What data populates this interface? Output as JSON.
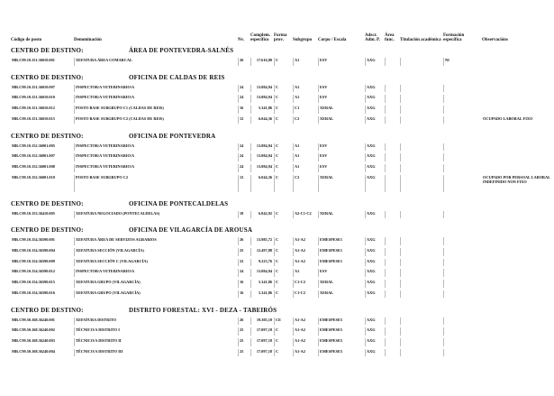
{
  "header": {
    "columns": [
      "Código de posto",
      "Denominación",
      "Nv.",
      "Complem. específico",
      "Forma prov.",
      "Subgrupo",
      "Corpo / Escala",
      "Adscr. Adm. P.",
      "Área func.",
      "Titulación académica",
      "Formación específica",
      "Observacións"
    ]
  },
  "sections": [
    {
      "label": "CENTRO DE DESTINO:",
      "name": "ÁREA DE PONTEVEDRA-SALNÉS",
      "rows": [
        {
          "code": "MR.C99.10.151.36010.001",
          "name": "XEFATURA ÁREA COMARCAL",
          "level": "26",
          "complement": "17.616,00",
          "form": "C",
          "subgroup": "A1",
          "corps": "ESV",
          "adscr": "AXG",
          "training": "NI"
        }
      ]
    },
    {
      "label": "CENTRO DE DESTINO:",
      "name": "OFICINA DE CALDAS DE REIS",
      "rows": [
        {
          "code": "MR.C99.10.151.36010.007",
          "name": "INSPECTOR/A VETERINARIO/A",
          "level": "24",
          "complement": "13.084,94",
          "form": "C",
          "subgroup": "A1",
          "corps": "ESV",
          "adscr": "AXG"
        },
        {
          "code": "MR.C99.10.151.36010.010",
          "name": "INSPECTOR/A VETERINARIO/A",
          "level": "24",
          "complement": "13.084,94",
          "form": "C",
          "subgroup": "A1",
          "corps": "ESV",
          "adscr": "AXG"
        },
        {
          "code": "MR.C99.10.151.36010.012",
          "name": "POSTO BASE SUBGRUPO C1 (CALDAS DE REIS)",
          "level": "16",
          "complement": "5.341,86",
          "form": "C",
          "subgroup": "C1",
          "corps": "XERAL",
          "adscr": "AXG"
        },
        {
          "code": "MR.C99.10.151.36010.015",
          "name": "POSTO BASE SUBGRUPO C2 (CALDAS DE REIS)",
          "level": "12",
          "complement": "6.044,36",
          "form": "C",
          "subgroup": "C2",
          "corps": "XERAL",
          "adscr": "AXG",
          "notes": "OCUPADO LABORAL FIXO"
        }
      ]
    },
    {
      "label": "CENTRO DE DESTINO:",
      "name": "OFICINA DE PONTEVEDRA",
      "rows": [
        {
          "code": "MR.C99.10.152.36001.005",
          "name": "INSPECTOR/A VETERINARIO/A",
          "level": "24",
          "complement": "13.084,94",
          "form": "C",
          "subgroup": "A1",
          "corps": "ESV",
          "adscr": "AXG"
        },
        {
          "code": "MR.C99.10.152.36001.007",
          "name": "INSPECTOR/A VETERINARIO/A",
          "level": "24",
          "complement": "13.084,94",
          "form": "C",
          "subgroup": "A1",
          "corps": "ESV",
          "adscr": "AXG"
        },
        {
          "code": "MR.C99.10.152.36001.008",
          "name": "INSPECTOR/A VETERINARIO/A",
          "level": "24",
          "complement": "13.084,94",
          "form": "C",
          "subgroup": "A1",
          "corps": "ESV",
          "adscr": "AXG"
        },
        {
          "code": "MR.C99.10.152.36001.010",
          "name": "POSTO BASE SUBGRUPO C2",
          "level": "12",
          "complement": "6.044,36",
          "form": "C",
          "subgroup": "C2",
          "corps": "XERAL",
          "adscr": "AXG",
          "notes": "OCUPADO POR PERSOAL LABORAL INDEFINIDO NON FIXO"
        }
      ]
    },
    {
      "label": "CENTRO DE DESTINO:",
      "name": "OFICINA DE PONTECALDELAS",
      "rows": [
        {
          "code": "MR.C99.10.153.36410.005",
          "name": "XEFATURA NEGOCIADO (PONTECALDELAS)",
          "level": "18",
          "complement": "6.842,92",
          "form": "C",
          "subgroup": "A2-C1-C2",
          "corps": "XERAL",
          "adscr": "AXG"
        }
      ]
    },
    {
      "label": "CENTRO DE DESTINO:",
      "name": "OFICINA DE VILAGARCÍA DE AROUSA",
      "rows": [
        {
          "code": "MR.C99.10.154.36590.001",
          "name": "XEFATURA ÁREA DE SERVIZOS AGRARIOS",
          "level": "26",
          "complement": "13.985,72",
          "form": "C",
          "subgroup": "A1-A2",
          "corps": "EMESPESE1",
          "adscr": "AXG"
        },
        {
          "code": "MR.C99.10.154.36590.004",
          "name": "XEFATURA SECCIÓN (VILAGARCÍA)",
          "level": "25",
          "complement": "12.497,88",
          "form": "C",
          "subgroup": "A1-A2",
          "corps": "EMESPESE1",
          "adscr": "AXG"
        },
        {
          "code": "MR.C99.10.154.36590.009",
          "name": "XEFATURA SECCIÓN C (VILAGARCÍA)",
          "level": "22",
          "complement": "9.223,76",
          "form": "C",
          "subgroup": "A1-A2",
          "corps": "EMESPESE1",
          "adscr": "AXG"
        },
        {
          "code": "MR.C99.10.154.36590.012",
          "name": "INSPECTOR/A VETERINARIO/A",
          "level": "24",
          "complement": "13.084,94",
          "form": "C",
          "subgroup": "A1",
          "corps": "ESV",
          "adscr": "AXG"
        },
        {
          "code": "MR.C99.10.154.36590.015",
          "name": "XEFATURA GRUPO (VILAGARCÍA)",
          "level": "16",
          "complement": "5.341,86",
          "form": "C",
          "subgroup": "C1-C2",
          "corps": "XERAL",
          "adscr": "AXG"
        },
        {
          "code": "MR.C99.10.154.36590.016",
          "name": "XEFATURA GRUPO (VILAGARCÍA)",
          "level": "16",
          "complement": "5.341,86",
          "form": "C",
          "subgroup": "C1-C2",
          "corps": "XERAL",
          "adscr": "AXG"
        }
      ]
    },
    {
      "label": "CENTRO DE DESTINO:",
      "name": "DISTRITO FORESTAL: XVI - DEZA - TABEIRÓS",
      "rows": [
        {
          "code": "MR.C99.50.168.36240.001",
          "name": "XEFATURA DISTRITO",
          "level": "26",
          "complement": "19.305,10",
          "form": "CE",
          "subgroup": "A1-A2",
          "corps": "EMESPESE5",
          "adscr": "AXG"
        },
        {
          "code": "MR.C99.50.168.36240.002",
          "name": "TÉCNICO/A DISTRITO I",
          "level": "25",
          "complement": "17.097,18",
          "form": "C",
          "subgroup": "A1-A2",
          "corps": "EMESPESE5",
          "adscr": "AXG"
        },
        {
          "code": "MR.C99.50.168.36240.003",
          "name": "TÉCNICO/A DISTRITO II",
          "level": "25",
          "complement": "17.097,18",
          "form": "C",
          "subgroup": "A1-A2",
          "corps": "EMESPESE5",
          "adscr": "AXG"
        },
        {
          "code": "MR.C99.50.168.36240.004",
          "name": "TÉCNICO/A DISTRITO III",
          "level": "25",
          "complement": "17.097,18",
          "form": "C",
          "subgroup": "A1-A2",
          "corps": "EMESPESE5",
          "adscr": "AXG"
        }
      ]
    }
  ]
}
